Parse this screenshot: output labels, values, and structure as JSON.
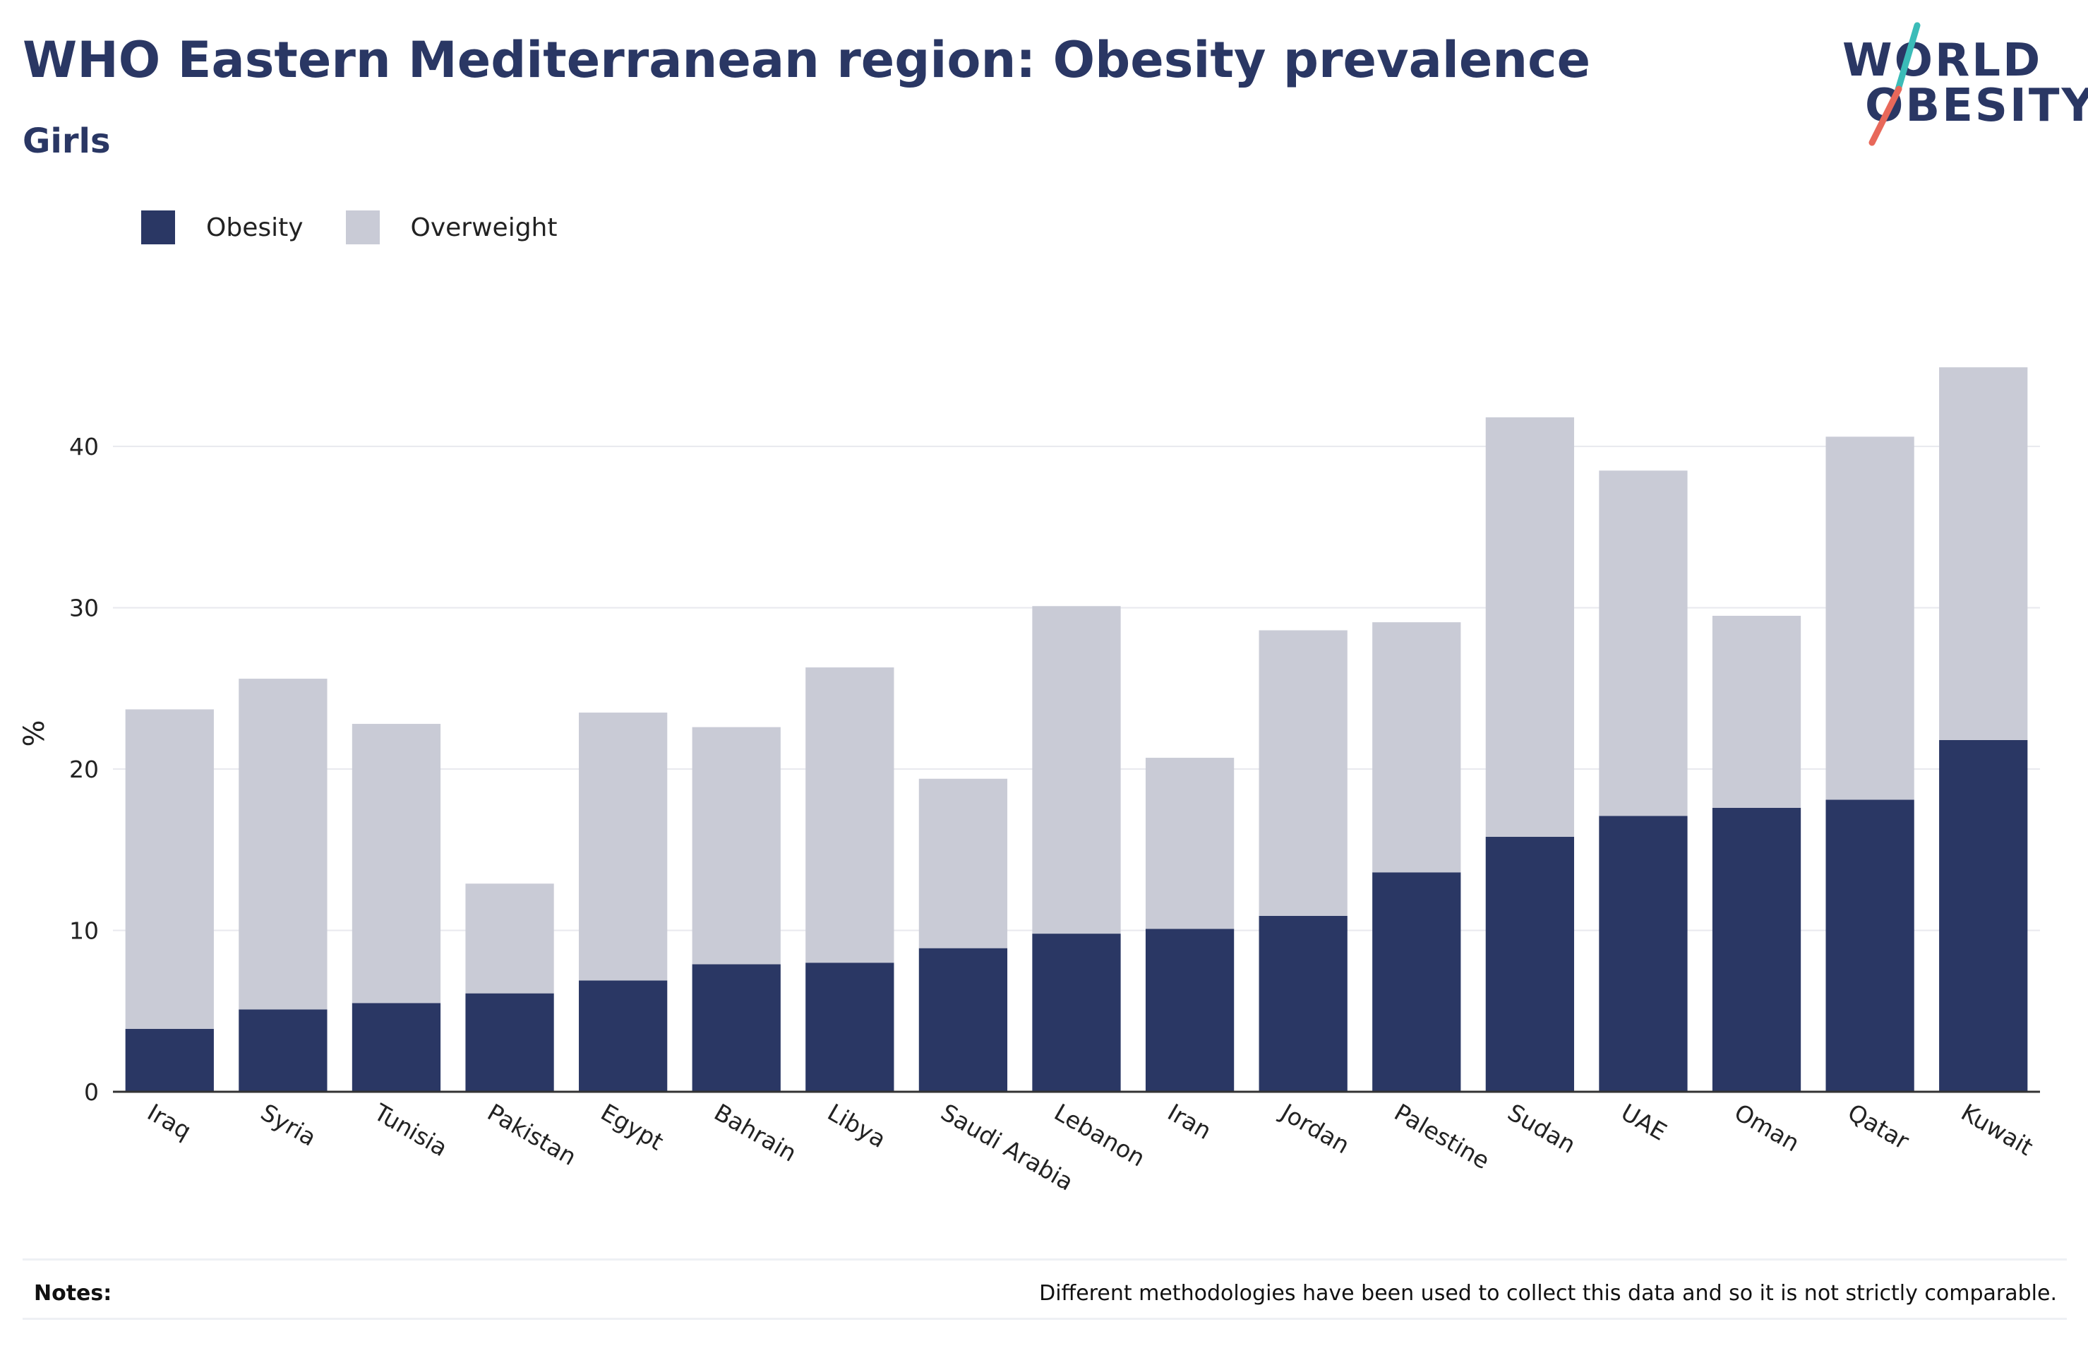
{
  "title": "WHO Eastern Mediterranean region: Obesity prevalence",
  "subtitle": "Girls",
  "logo": {
    "line1": "WORLD",
    "line2": "OBESITY",
    "accent_colors": [
      "#3bbcb8",
      "#e8685a"
    ]
  },
  "notes": {
    "label": "Notes:",
    "text": "Different methodologies have been used to collect this data and so it is not strictly comparable."
  },
  "chart_data": {
    "type": "bar",
    "stacked": true,
    "ylabel": "%",
    "xlabel": "",
    "ylim": [
      0,
      46
    ],
    "yticks": [
      0,
      10,
      20,
      30,
      40
    ],
    "grid": true,
    "legend_position": "top-left",
    "categories": [
      "Iraq",
      "Syria",
      "Tunisia",
      "Pakistan",
      "Egypt",
      "Bahrain",
      "Libya",
      "Saudi Arabia",
      "Lebanon",
      "Iran",
      "Jordan",
      "Palestine",
      "Sudan",
      "UAE",
      "Oman",
      "Qatar",
      "Kuwait"
    ],
    "series": [
      {
        "name": "Obesity",
        "color": "#2a3764",
        "values": [
          3.9,
          5.1,
          5.5,
          6.1,
          6.9,
          7.9,
          8.0,
          8.9,
          9.8,
          10.1,
          10.9,
          13.6,
          15.8,
          17.1,
          17.6,
          18.1,
          21.8
        ]
      },
      {
        "name": "Overweight",
        "color": "#c9cbd6",
        "values": [
          19.8,
          20.5,
          17.3,
          6.8,
          16.6,
          14.7,
          18.3,
          10.5,
          20.3,
          10.6,
          17.7,
          15.5,
          26.0,
          21.4,
          11.9,
          22.5,
          23.1
        ]
      }
    ]
  }
}
